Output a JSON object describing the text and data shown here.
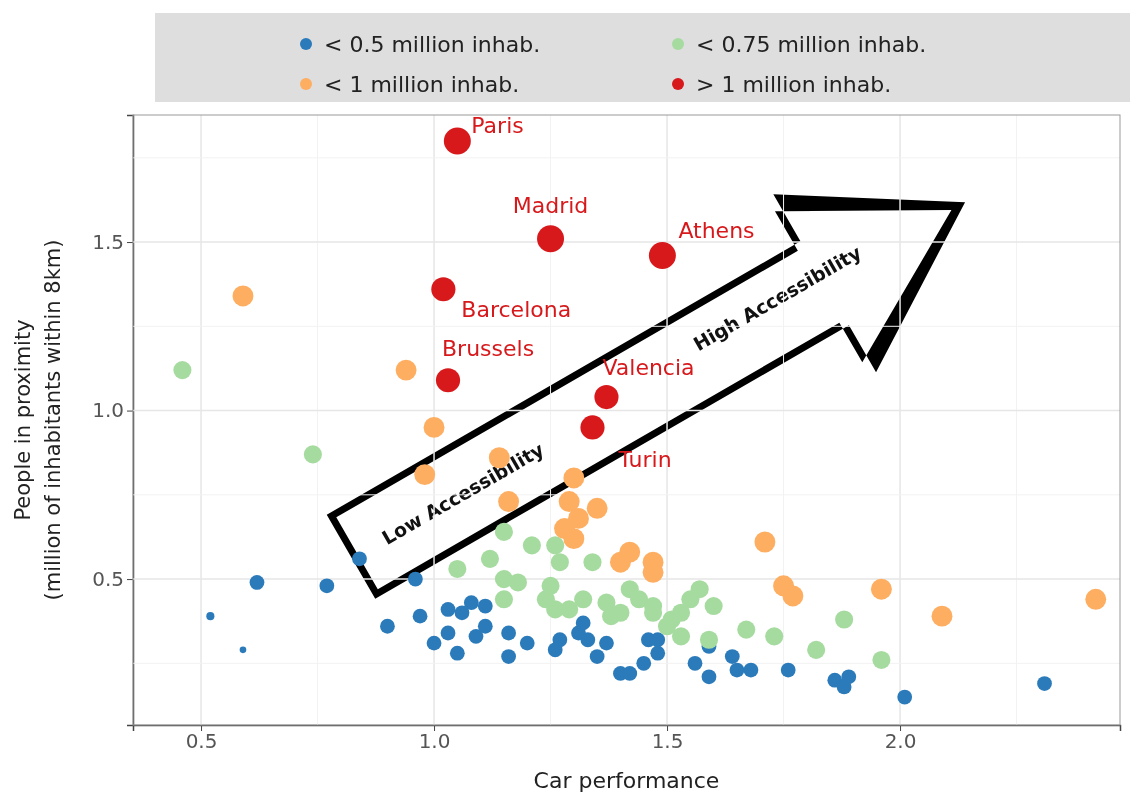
{
  "chart_data": {
    "type": "bubble",
    "xlabel": "Car performance",
    "ylabel": "People in proximity\n(million of inhabitants within 8km)",
    "xlim": [
      0.354,
      2.472
    ],
    "ylim": [
      0.067,
      1.877
    ],
    "xticks": [
      0.5,
      {
        "value": 1,
        "label": "1.0"
      },
      1.5,
      {
        "value": 2,
        "label": "2.0"
      }
    ],
    "yticks": [
      0.5,
      {
        "value": 1,
        "label": "1.0"
      },
      1.5
    ],
    "grid": true,
    "legend": "top",
    "series": [
      {
        "name": "< 0.5 million inhab.",
        "color": "#2b7bba",
        "x": [
          0.52,
          0.59,
          0.62,
          0.77,
          0.84,
          0.96,
          0.9,
          0.97,
          1.0,
          1.03,
          1.06,
          1.08,
          1.11,
          1.03,
          1.09,
          1.11,
          1.05,
          1.16,
          1.16,
          1.2,
          1.27,
          1.26,
          1.31,
          1.32,
          1.33,
          1.37,
          1.35,
          1.4,
          1.42,
          1.45,
          1.46,
          1.48,
          1.48,
          1.56,
          1.59,
          1.59,
          1.64,
          1.65,
          1.68,
          1.76,
          1.86,
          1.88,
          1.89,
          2.01,
          2.31
        ],
        "values": [
          0.39,
          0.29,
          0.49,
          0.48,
          0.56,
          0.5,
          0.36,
          0.39,
          0.31,
          0.41,
          0.4,
          0.43,
          0.42,
          0.34,
          0.33,
          0.36,
          0.28,
          0.34,
          0.27,
          0.31,
          0.32,
          0.29,
          0.34,
          0.37,
          0.32,
          0.31,
          0.27,
          0.22,
          0.22,
          0.25,
          0.32,
          0.32,
          0.28,
          0.25,
          0.3,
          0.21,
          0.27,
          0.23,
          0.23,
          0.23,
          0.2,
          0.18,
          0.21,
          0.15,
          0.19
        ],
        "sizes": [
          0.09,
          0.06,
          0.3,
          0.3,
          0.3,
          0.3,
          0.3,
          0.3,
          0.3,
          0.3,
          0.3,
          0.3,
          0.3,
          0.3,
          0.3,
          0.3,
          0.3,
          0.3,
          0.3,
          0.3,
          0.3,
          0.3,
          0.3,
          0.3,
          0.3,
          0.3,
          0.3,
          0.3,
          0.3,
          0.3,
          0.3,
          0.3,
          0.3,
          0.3,
          0.3,
          0.3,
          0.3,
          0.3,
          0.3,
          0.3,
          0.3,
          0.3,
          0.3,
          0.3,
          0.3
        ]
      },
      {
        "name": "< 0.75 million inhab.",
        "color": "#a6dba0",
        "x": [
          0.46,
          0.74,
          1.15,
          1.05,
          1.12,
          1.21,
          1.26,
          1.27,
          1.34,
          1.15,
          1.18,
          1.15,
          1.25,
          1.24,
          1.26,
          1.29,
          1.32,
          1.37,
          1.38,
          1.4,
          1.42,
          1.44,
          1.47,
          1.47,
          1.5,
          1.51,
          1.53,
          1.55,
          1.57,
          1.6,
          1.53,
          1.59,
          1.67,
          1.73,
          1.82,
          1.88,
          1.96
        ],
        "values": [
          1.12,
          0.87,
          0.64,
          0.53,
          0.56,
          0.6,
          0.6,
          0.55,
          0.55,
          0.5,
          0.49,
          0.44,
          0.48,
          0.44,
          0.41,
          0.41,
          0.44,
          0.43,
          0.39,
          0.4,
          0.47,
          0.44,
          0.42,
          0.4,
          0.36,
          0.38,
          0.4,
          0.44,
          0.47,
          0.42,
          0.33,
          0.32,
          0.35,
          0.33,
          0.29,
          0.38,
          0.26
        ],
        "sizes": [
          0.45,
          0.45,
          0.45,
          0.45,
          0.45,
          0.45,
          0.45,
          0.45,
          0.45,
          0.45,
          0.45,
          0.45,
          0.45,
          0.45,
          0.45,
          0.45,
          0.45,
          0.45,
          0.45,
          0.45,
          0.45,
          0.45,
          0.45,
          0.45,
          0.45,
          0.45,
          0.45,
          0.45,
          0.45,
          0.45,
          0.45,
          0.45,
          0.45,
          0.45,
          0.45,
          0.45,
          0.45
        ]
      },
      {
        "name": "< 1 million inhab.",
        "color": "#fdae61",
        "x": [
          0.59,
          0.94,
          1.0,
          0.98,
          1.14,
          1.16,
          1.3,
          1.29,
          1.35,
          1.31,
          1.28,
          1.3,
          1.42,
          1.4,
          1.47,
          1.47,
          1.71,
          1.75,
          1.77,
          1.96,
          2.09,
          2.42
        ],
        "values": [
          1.34,
          1.12,
          0.95,
          0.81,
          0.86,
          0.73,
          0.8,
          0.73,
          0.71,
          0.68,
          0.65,
          0.62,
          0.58,
          0.55,
          0.55,
          0.52,
          0.61,
          0.48,
          0.45,
          0.47,
          0.39,
          0.44
        ],
        "sizes": [
          0.6,
          0.6,
          0.6,
          0.6,
          0.6,
          0.6,
          0.6,
          0.6,
          0.6,
          0.6,
          0.6,
          0.6,
          0.6,
          0.6,
          0.6,
          0.6,
          0.6,
          0.6,
          0.6,
          0.6,
          0.6,
          0.6
        ]
      },
      {
        "name": "> 1 million inhab.",
        "color": "#d7191c",
        "x": [
          1.05,
          1.25,
          1.49,
          1.02,
          1.03,
          1.37,
          1.34
        ],
        "values": [
          1.8,
          1.51,
          1.46,
          1.36,
          1.09,
          1.04,
          0.95
        ],
        "sizes": [
          1,
          1,
          1,
          0.8,
          0.8,
          0.8,
          0.8
        ]
      }
    ],
    "annotations": [
      {
        "text": "Paris",
        "x": 1.05,
        "y": 1.8
      },
      {
        "text": "Madrid",
        "x": 1.25,
        "y": 1.51
      },
      {
        "text": "Athens",
        "x": 1.49,
        "y": 1.46
      },
      {
        "text": "Barcelona",
        "x": 1.02,
        "y": 1.36
      },
      {
        "text": "Brussels",
        "x": 1.03,
        "y": 1.09
      },
      {
        "text": "Valencia",
        "x": 1.37,
        "y": 1.04
      },
      {
        "text": "Turin",
        "x": 1.34,
        "y": 0.95
      },
      "Low Accessibility",
      "High Accessibility"
    ]
  }
}
